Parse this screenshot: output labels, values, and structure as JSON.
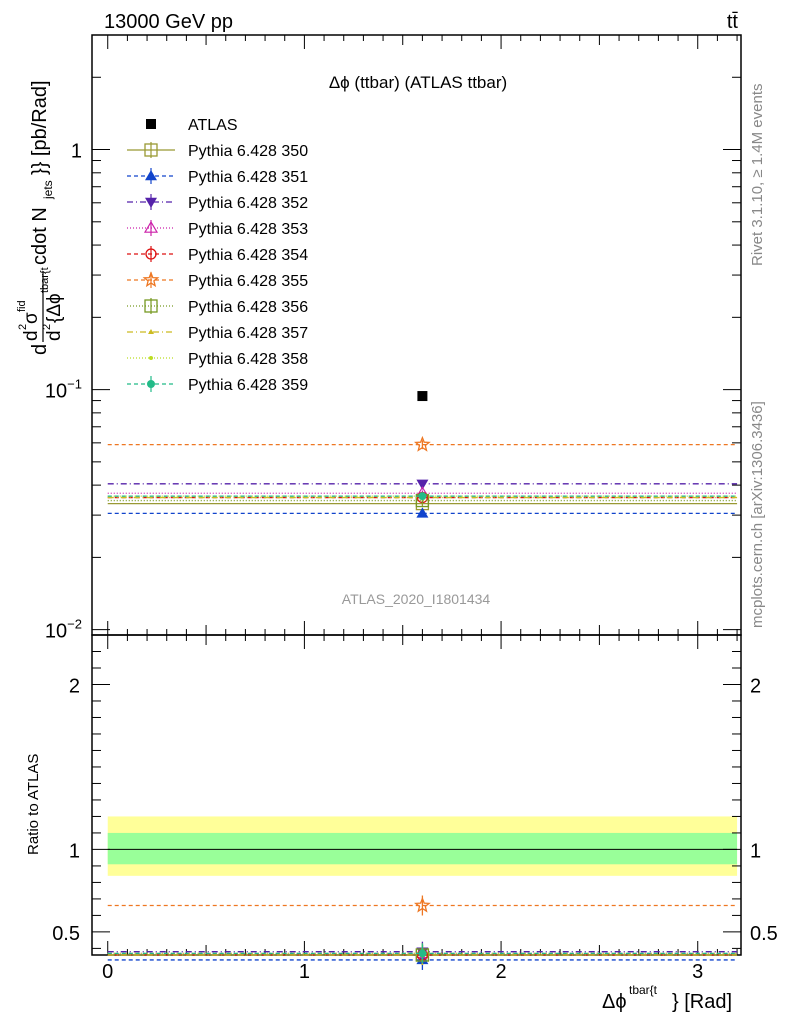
{
  "header": {
    "energy_label": "13000 GeV pp",
    "process_label": "tt̄"
  },
  "side_text": {
    "rivet": "Rivet 3.1.10, ≥ 1.4M events",
    "source": "mcplots.cern.ch [arXiv:1306.3436]"
  },
  "chart_data": {
    "type": "line",
    "title": "Δϕ (ttbar) (ATLAS ttbar)",
    "watermark": "ATLAS_2020_I1801434",
    "xlabel_main": "Δϕ",
    "xlabel_sup": "tbar{t",
    "xlabel_tail": "} [Rad]",
    "ylabel": "d²σ^fid / d²{Δϕ^tbar{t}} cdot N_jets}} [pb/Rad]",
    "ylabel_parts": {
      "d": "d",
      "num_d2": "d",
      "num_sigma": "σ",
      "num_fid": "fid",
      "den_d2": "d",
      "den_phi": "{Δϕ",
      "den_sup": "tbar{t",
      "tail": "cdot N",
      "jets": "jets",
      "end": "}} [pb/Rad]"
    },
    "ratio_ylabel": "Ratio to ATLAS",
    "xlim": [
      -0.08,
      3.22
    ],
    "ylim": [
      0.0095,
      3.0
    ],
    "yscale": "log",
    "ratio_ylim": [
      0.36,
      2.3
    ],
    "x_ticks": [
      "0",
      "1",
      "2",
      "3"
    ],
    "y_ticks": [
      {
        "value": 1,
        "base": "1",
        "exp": ""
      },
      {
        "value": 0.1,
        "base": "10",
        "exp": "−1"
      },
      {
        "value": 0.01,
        "base": "10",
        "exp": "−2"
      }
    ],
    "ratio_ticks": [
      "0.5",
      "1",
      "2"
    ],
    "bin": [
      0,
      3.2
    ],
    "x_center": 1.6,
    "data": {
      "name": "ATLAS",
      "value": 0.094,
      "color": "#000000"
    },
    "ratio_band": {
      "inner": [
        0.91,
        1.1
      ],
      "outer": [
        0.84,
        1.2
      ],
      "inner_color": "#99ff99",
      "outer_color": "#ffff99"
    },
    "series": [
      {
        "name": "Pythia 6.428 350",
        "value": 0.0335,
        "ratio": 0.36,
        "err": 0.001,
        "color": "#999933",
        "dash": "",
        "marker": "square-open"
      },
      {
        "name": "Pythia 6.428 351",
        "value": 0.0305,
        "ratio": 0.33,
        "err": 0.001,
        "color": "#1144cc",
        "dash": "4,3",
        "marker": "triangle-up"
      },
      {
        "name": "Pythia 6.428 352",
        "value": 0.0405,
        "ratio": 0.38,
        "err": 0.001,
        "color": "#5522aa",
        "dash": "6,3,1,3",
        "marker": "triangle-down"
      },
      {
        "name": "Pythia 6.428 353",
        "value": 0.037,
        "ratio": 0.37,
        "err": 0.001,
        "color": "#cc22aa",
        "dash": "1,2",
        "marker": "triangle-open"
      },
      {
        "name": "Pythia 6.428 354",
        "value": 0.0355,
        "ratio": 0.36,
        "err": 0.001,
        "color": "#dd1111",
        "dash": "4,3",
        "marker": "circle-open"
      },
      {
        "name": "Pythia 6.428 355",
        "value": 0.059,
        "ratio": 0.66,
        "err": 0.0025,
        "color": "#ee7722",
        "dash": "4,3",
        "marker": "star-open"
      },
      {
        "name": "Pythia 6.428 356",
        "value": 0.0345,
        "ratio": 0.36,
        "err": 0.001,
        "color": "#779922",
        "dash": "1,2",
        "marker": "square-open"
      },
      {
        "name": "Pythia 6.428 357",
        "value": 0.0355,
        "ratio": 0.36,
        "err": 0.001,
        "color": "#ccbb22",
        "dash": "6,3,1,3",
        "marker": "triangle-small"
      },
      {
        "name": "Pythia 6.428 358",
        "value": 0.036,
        "ratio": 0.37,
        "err": 0.001,
        "color": "#bbdd22",
        "dash": "1,2",
        "marker": "dot"
      },
      {
        "name": "Pythia 6.428 359",
        "value": 0.036,
        "ratio": 0.37,
        "err": 0.001,
        "color": "#22bb88",
        "dash": "4,3",
        "marker": "circle-filled"
      }
    ]
  }
}
